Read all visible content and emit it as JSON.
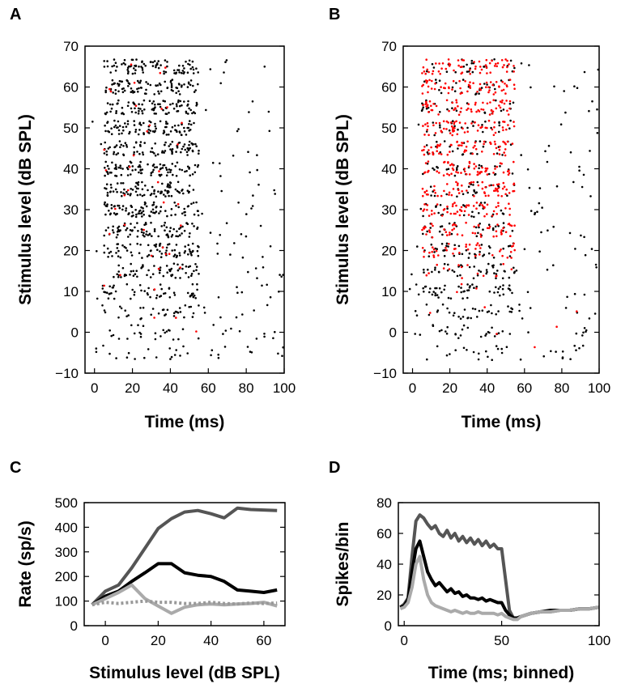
{
  "chart_data": [
    {
      "panel": "A",
      "type": "scatter",
      "subtype": "dot raster",
      "xlabel": "Time (ms)",
      "ylabel": "Stimulus level (dB SPL)",
      "xlim": [
        -5,
        100
      ],
      "ylim": [
        -10,
        70
      ],
      "xticks": [
        0,
        20,
        40,
        60,
        80,
        100
      ],
      "yticks": [
        -10,
        0,
        10,
        20,
        30,
        40,
        50,
        60,
        70
      ],
      "levels": [
        -5,
        0,
        5,
        10,
        15,
        20,
        25,
        30,
        35,
        40,
        45,
        50,
        55,
        60,
        65
      ],
      "stimulus_window_ms": [
        5,
        55
      ],
      "band_halfwidth_db": 1.8,
      "series": [
        {
          "name": "spikes (black)",
          "color": "#000000",
          "driven_density": [
            14,
            20,
            30,
            50,
            60,
            75,
            80,
            85,
            85,
            85,
            85,
            85,
            85,
            85,
            85
          ],
          "spont_density": [
            16,
            14,
            12,
            12,
            10,
            9,
            8,
            7,
            6,
            6,
            6,
            5,
            5,
            5,
            5
          ]
        },
        {
          "name": "spikes (red)",
          "color": "#ff0000",
          "driven_density": [
            0,
            1,
            2,
            2,
            3,
            4,
            4,
            3,
            3,
            3,
            3,
            3,
            3,
            3,
            3
          ],
          "spont_density": [
            0,
            0,
            0,
            0,
            0,
            0,
            0,
            0,
            0,
            0,
            0,
            0,
            0,
            0,
            0
          ]
        }
      ]
    },
    {
      "panel": "B",
      "type": "scatter",
      "subtype": "dot raster",
      "xlabel": "Time (ms)",
      "ylabel": "Stimulus level (dB SPL)",
      "xlim": [
        -5,
        100
      ],
      "ylim": [
        -10,
        70
      ],
      "xticks": [
        0,
        20,
        40,
        60,
        80,
        100
      ],
      "yticks": [
        -10,
        0,
        10,
        20,
        30,
        40,
        50,
        60,
        70
      ],
      "levels": [
        -5,
        0,
        5,
        10,
        15,
        20,
        25,
        30,
        35,
        40,
        45,
        50,
        55,
        60,
        65
      ],
      "stimulus_window_ms": [
        5,
        55
      ],
      "band_halfwidth_db": 1.8,
      "series": [
        {
          "name": "spikes (black)",
          "color": "#000000",
          "driven_density": [
            14,
            20,
            30,
            45,
            40,
            35,
            30,
            25,
            25,
            25,
            25,
            25,
            25,
            25,
            25
          ],
          "spont_density": [
            16,
            14,
            12,
            12,
            10,
            9,
            8,
            7,
            6,
            6,
            6,
            5,
            5,
            5,
            5
          ]
        },
        {
          "name": "spikes (red)",
          "color": "#ff0000",
          "driven_density": [
            0,
            1,
            2,
            3,
            15,
            40,
            50,
            55,
            60,
            60,
            60,
            60,
            60,
            60,
            60
          ],
          "spont_density": [
            1,
            1,
            1,
            0,
            0,
            0,
            0,
            0,
            0,
            0,
            0,
            0,
            0,
            0,
            0
          ]
        }
      ]
    },
    {
      "panel": "C",
      "type": "line",
      "xlabel": "Stimulus level (dB SPL)",
      "ylabel": "Rate (sp/s)",
      "xlim": [
        -8,
        68
      ],
      "ylim": [
        0,
        500
      ],
      "xticks": [
        0,
        20,
        40,
        60
      ],
      "yticks": [
        0,
        100,
        200,
        300,
        400,
        500
      ],
      "x": [
        -5,
        0,
        5,
        10,
        15,
        20,
        25,
        30,
        35,
        40,
        45,
        50,
        55,
        60,
        65
      ],
      "series": [
        {
          "name": "dark gray",
          "color": "#555555",
          "dash": "",
          "values": [
            85,
            140,
            165,
            235,
            315,
            395,
            435,
            462,
            468,
            455,
            438,
            478,
            472,
            470,
            468
          ]
        },
        {
          "name": "black",
          "color": "#000000",
          "dash": "",
          "values": [
            85,
            120,
            140,
            180,
            215,
            252,
            252,
            215,
            205,
            200,
            180,
            145,
            140,
            135,
            145
          ]
        },
        {
          "name": "light gray",
          "color": "#aaaaaa",
          "dash": "",
          "values": [
            85,
            110,
            135,
            165,
            110,
            80,
            50,
            75,
            85,
            88,
            85,
            88,
            90,
            95,
            80
          ]
        },
        {
          "name": "dotted gray",
          "color": "#999999",
          "dash": "3,3",
          "values": [
            85,
            95,
            90,
            95,
            100,
            95,
            95,
            90,
            90,
            95,
            90,
            88,
            92,
            90,
            92
          ]
        }
      ]
    },
    {
      "panel": "D",
      "type": "line",
      "xlabel": "Time (ms; binned)",
      "ylabel": "Spikes/bin",
      "xlim": [
        -3,
        100
      ],
      "ylim": [
        0,
        80
      ],
      "xticks": [
        0,
        50,
        100
      ],
      "yticks": [
        0,
        20,
        40,
        60,
        80
      ],
      "x": [
        -2,
        0,
        2,
        4,
        6,
        8,
        10,
        12,
        14,
        16,
        18,
        20,
        22,
        24,
        26,
        28,
        30,
        32,
        34,
        36,
        38,
        40,
        42,
        44,
        46,
        48,
        50,
        52,
        54,
        56,
        58,
        60,
        65,
        70,
        75,
        80,
        85,
        90,
        95,
        100
      ],
      "series": [
        {
          "name": "dark gray",
          "color": "#555555",
          "values": [
            12,
            14,
            18,
            45,
            68,
            72,
            70,
            66,
            63,
            65,
            60,
            58,
            62,
            57,
            60,
            55,
            58,
            54,
            57,
            53,
            56,
            52,
            55,
            51,
            53,
            50,
            50,
            30,
            10,
            5,
            5,
            6,
            8,
            9,
            9,
            10,
            10,
            11,
            11,
            12
          ]
        },
        {
          "name": "black",
          "color": "#000000",
          "values": [
            12,
            13,
            17,
            35,
            50,
            55,
            45,
            35,
            30,
            26,
            28,
            25,
            22,
            24,
            21,
            22,
            19,
            20,
            18,
            18,
            17,
            18,
            16,
            17,
            16,
            15,
            15,
            10,
            7,
            5,
            5,
            6,
            8,
            9,
            10,
            10,
            10,
            11,
            11,
            12
          ]
        },
        {
          "name": "light gray",
          "color": "#aaaaaa",
          "values": [
            11,
            12,
            15,
            25,
            40,
            45,
            30,
            20,
            15,
            13,
            12,
            11,
            10,
            9,
            10,
            9,
            8,
            9,
            8,
            8,
            9,
            8,
            8,
            8,
            8,
            7,
            8,
            6,
            5,
            4,
            4,
            6,
            8,
            9,
            9,
            10,
            10,
            11,
            11,
            12
          ]
        }
      ]
    }
  ]
}
